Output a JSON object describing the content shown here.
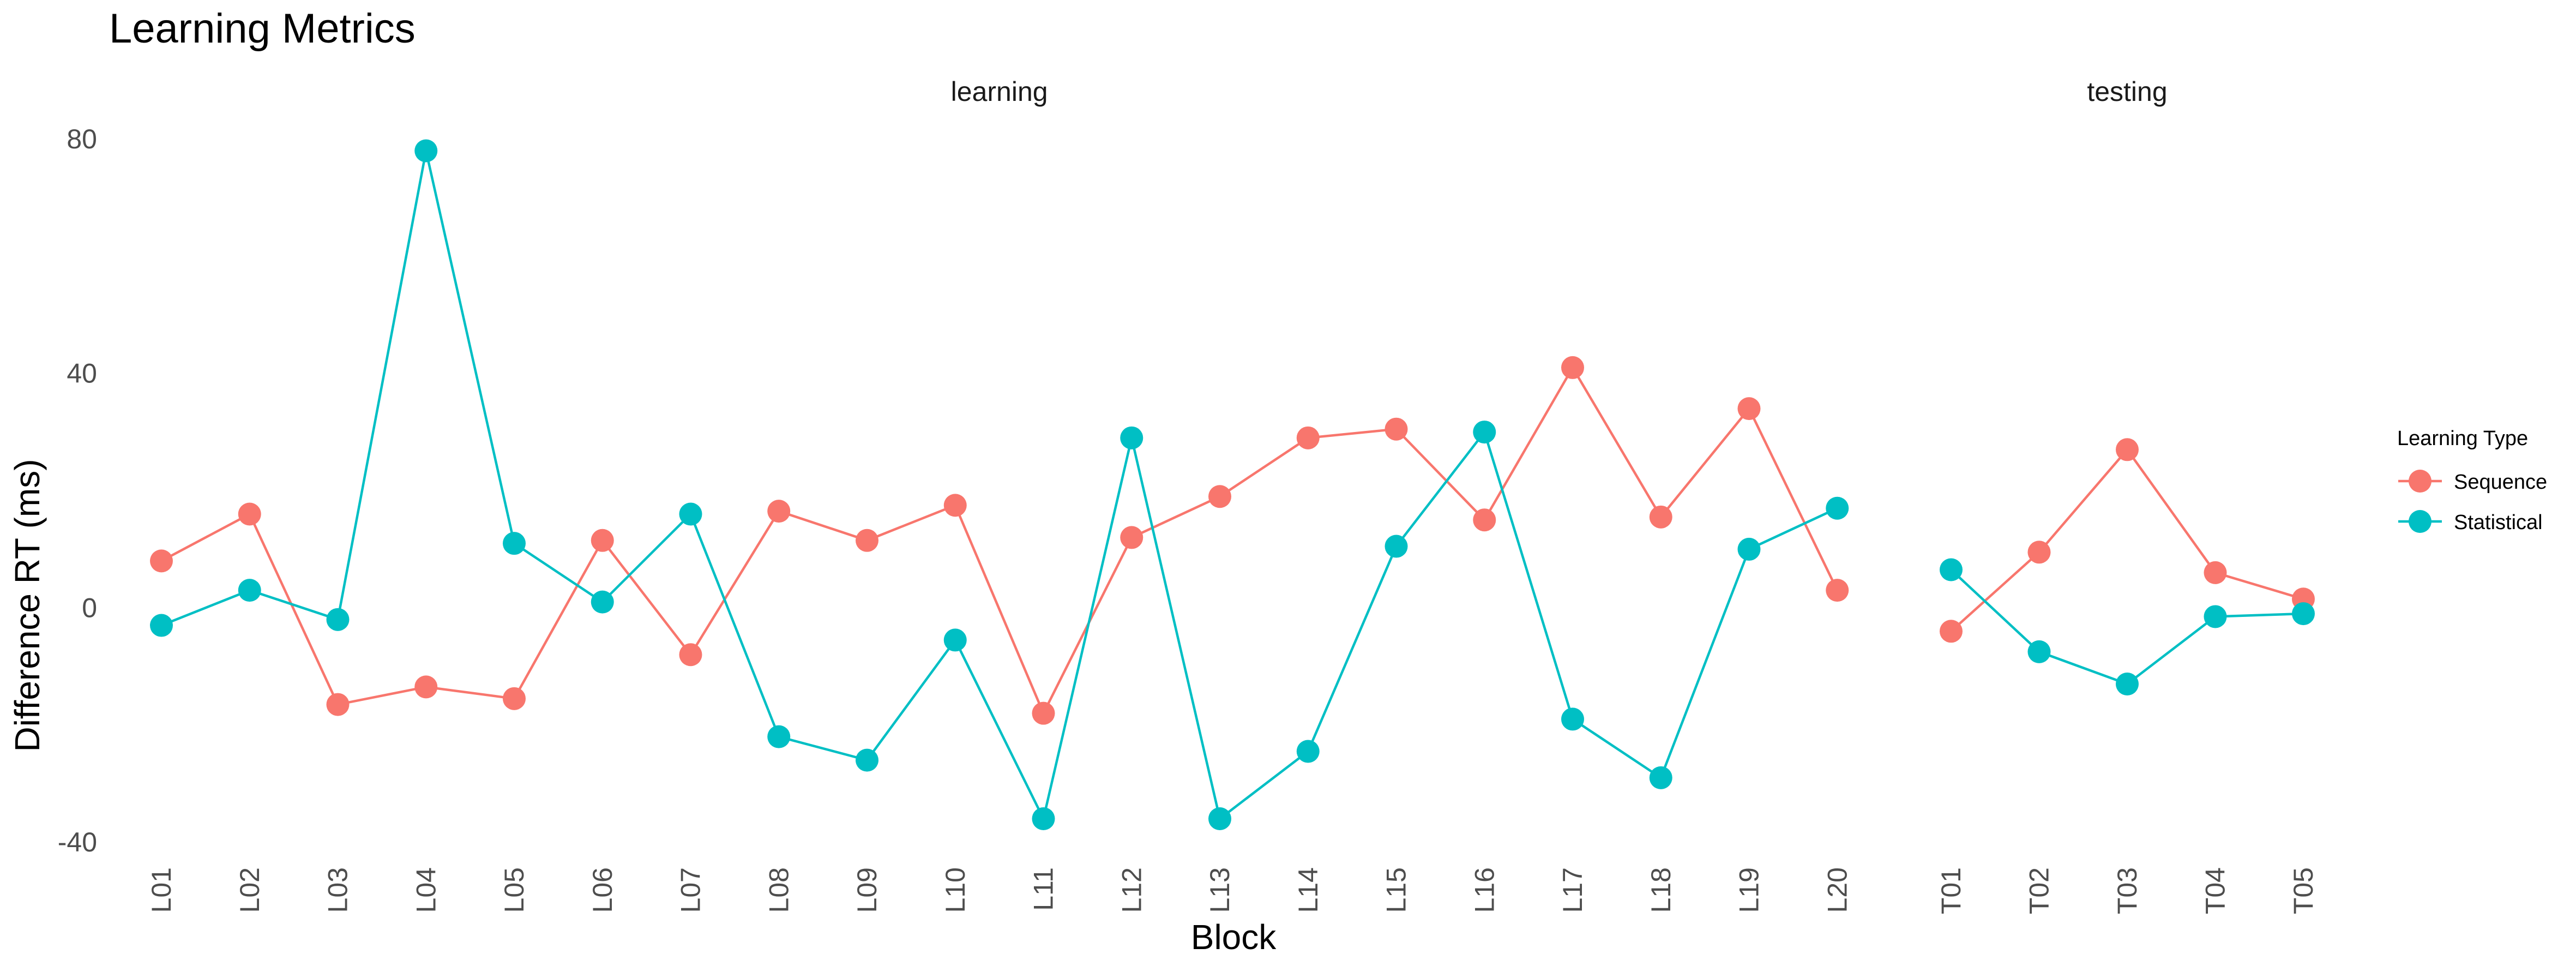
{
  "chart_data": {
    "type": "line",
    "title": "Learning Metrics",
    "xlabel": "Block",
    "ylabel": "Difference RT (ms)",
    "ylim": [
      -40,
      80
    ],
    "yticks": [
      -40,
      0,
      40,
      80
    ],
    "grid": false,
    "legend": {
      "title": "Learning Type",
      "placement": "right",
      "entries": [
        "Sequence",
        "Statistical"
      ]
    },
    "colors": {
      "Sequence": "#F8766D",
      "Statistical": "#00BFC4"
    },
    "facets": [
      {
        "label": "learning",
        "categories": [
          "L01",
          "L02",
          "L03",
          "L04",
          "L05",
          "L06",
          "L07",
          "L08",
          "L09",
          "L10",
          "L11",
          "L12",
          "L13",
          "L14",
          "L15",
          "L16",
          "L17",
          "L18",
          "L19",
          "L20"
        ],
        "series": [
          {
            "name": "Sequence",
            "values": [
              8,
              16,
              -16.5,
              -13.5,
              -15.5,
              11.5,
              -8,
              16.5,
              11.5,
              17.5,
              -18,
              12,
              19,
              29,
              30.5,
              15,
              41,
              15.5,
              34,
              3
            ]
          },
          {
            "name": "Statistical",
            "values": [
              -3,
              3,
              -2,
              78,
              11,
              1,
              16,
              -22,
              -26,
              -5.5,
              -36,
              29,
              -36,
              -24.5,
              10.5,
              30,
              -19,
              -29,
              10,
              17
            ]
          }
        ]
      },
      {
        "label": "testing",
        "categories": [
          "T01",
          "T02",
          "T03",
          "T04",
          "T05"
        ],
        "series": [
          {
            "name": "Sequence",
            "values": [
              -4,
              9.5,
              27,
              6,
              1.5
            ]
          },
          {
            "name": "Statistical",
            "values": [
              6.5,
              -7.5,
              -13,
              -1.5,
              -1
            ]
          }
        ]
      }
    ]
  }
}
